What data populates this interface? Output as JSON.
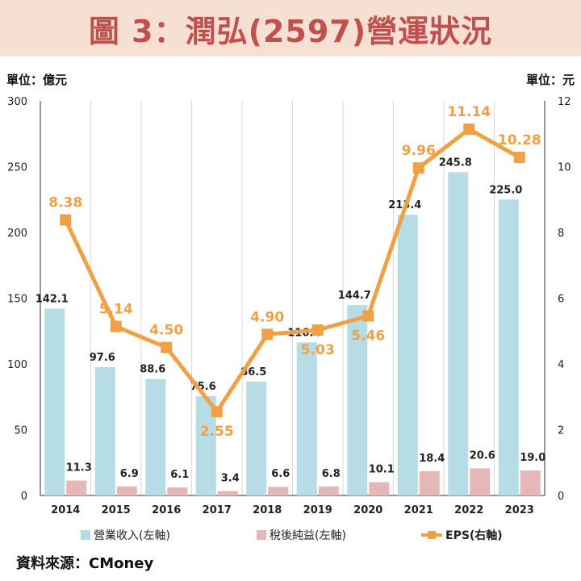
{
  "title": "圖 3：潤弘(2597)營運狀況",
  "left_unit": "單位：億元",
  "right_unit": "單位：元",
  "source": "資料來源：CMoney",
  "colors": {
    "revenue": "#b6dce6",
    "net_income": "#e6b7b7",
    "eps": "#f0a045",
    "eps_label": "#f0a045",
    "title": "#c0504d",
    "banner": "#f5e0d3"
  },
  "chart_data": {
    "type": "bar",
    "categories": [
      "2014",
      "2015",
      "2016",
      "2017",
      "2018",
      "2019",
      "2020",
      "2021",
      "2022",
      "2023"
    ],
    "series": [
      {
        "name": "營業收入(左軸)",
        "type": "bar",
        "axis": "left",
        "values": [
          142.1,
          97.6,
          88.6,
          75.6,
          86.5,
          116.4,
          144.7,
          213.4,
          245.8,
          225.0
        ]
      },
      {
        "name": "稅後純益(左軸)",
        "type": "bar",
        "axis": "left",
        "values": [
          11.3,
          6.9,
          6.1,
          3.4,
          6.6,
          6.8,
          10.1,
          18.4,
          20.6,
          19.0
        ]
      },
      {
        "name": "EPS(右軸)",
        "type": "line",
        "axis": "right",
        "values": [
          8.38,
          5.14,
          4.5,
          2.55,
          4.9,
          5.03,
          5.46,
          9.96,
          11.14,
          10.28
        ]
      }
    ],
    "left_axis": {
      "ylim": [
        0,
        300
      ],
      "ticks": [
        0,
        50,
        100,
        150,
        200,
        250,
        300
      ]
    },
    "right_axis": {
      "ylim": [
        0,
        12
      ],
      "ticks": [
        0,
        2,
        4,
        6,
        8,
        10,
        12
      ]
    },
    "grid": "vertical category separators",
    "legend": "bottom"
  }
}
